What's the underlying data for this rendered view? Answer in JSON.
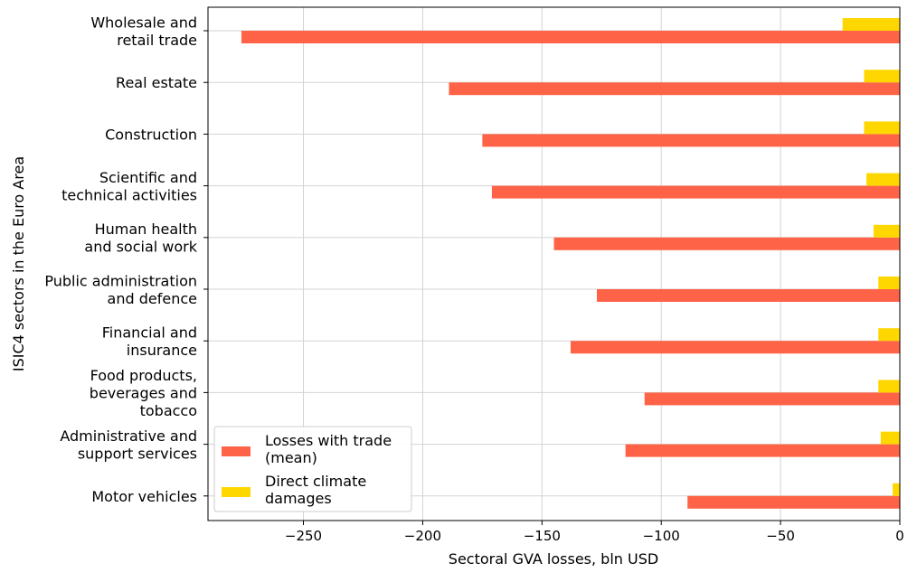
{
  "chart_data": {
    "type": "bar",
    "orientation": "horizontal",
    "xlabel": "Sectoral GVA losses, bln USD",
    "ylabel": "ISIC4 sectors in the Euro Area",
    "xlim": [
      -290,
      0
    ],
    "xticks": [
      -250,
      -200,
      -150,
      -100,
      -50,
      0
    ],
    "xtick_labels": [
      "−250",
      "−200",
      "−150",
      "−100",
      "−50",
      "0"
    ],
    "grid": true,
    "legend_position": "lower-left",
    "categories": [
      [
        "Wholesale and",
        "retail trade"
      ],
      [
        "Real estate"
      ],
      [
        "Construction"
      ],
      [
        "Scientific and",
        "technical activities"
      ],
      [
        "Human health",
        "and social work"
      ],
      [
        "Public administration",
        "and defence"
      ],
      [
        "Financial and",
        "insurance"
      ],
      [
        "Food products,",
        "beverages and",
        "tobacco"
      ],
      [
        "Administrative and",
        "support services"
      ],
      [
        "Motor vehicles"
      ]
    ],
    "series": [
      {
        "name": "Losses with trade (mean)",
        "legend_lines": [
          "Losses with trade",
          "(mean)"
        ],
        "color": "#ff6347",
        "values": [
          -276,
          -189,
          -175,
          -171,
          -145,
          -127,
          -138,
          -107,
          -115,
          -89
        ]
      },
      {
        "name": "Direct climate damages",
        "legend_lines": [
          "Direct climate",
          "damages"
        ],
        "color": "#ffd700",
        "values": [
          -24,
          -15,
          -15,
          -14,
          -11,
          -9,
          -9,
          -9,
          -8,
          -3
        ]
      }
    ]
  }
}
